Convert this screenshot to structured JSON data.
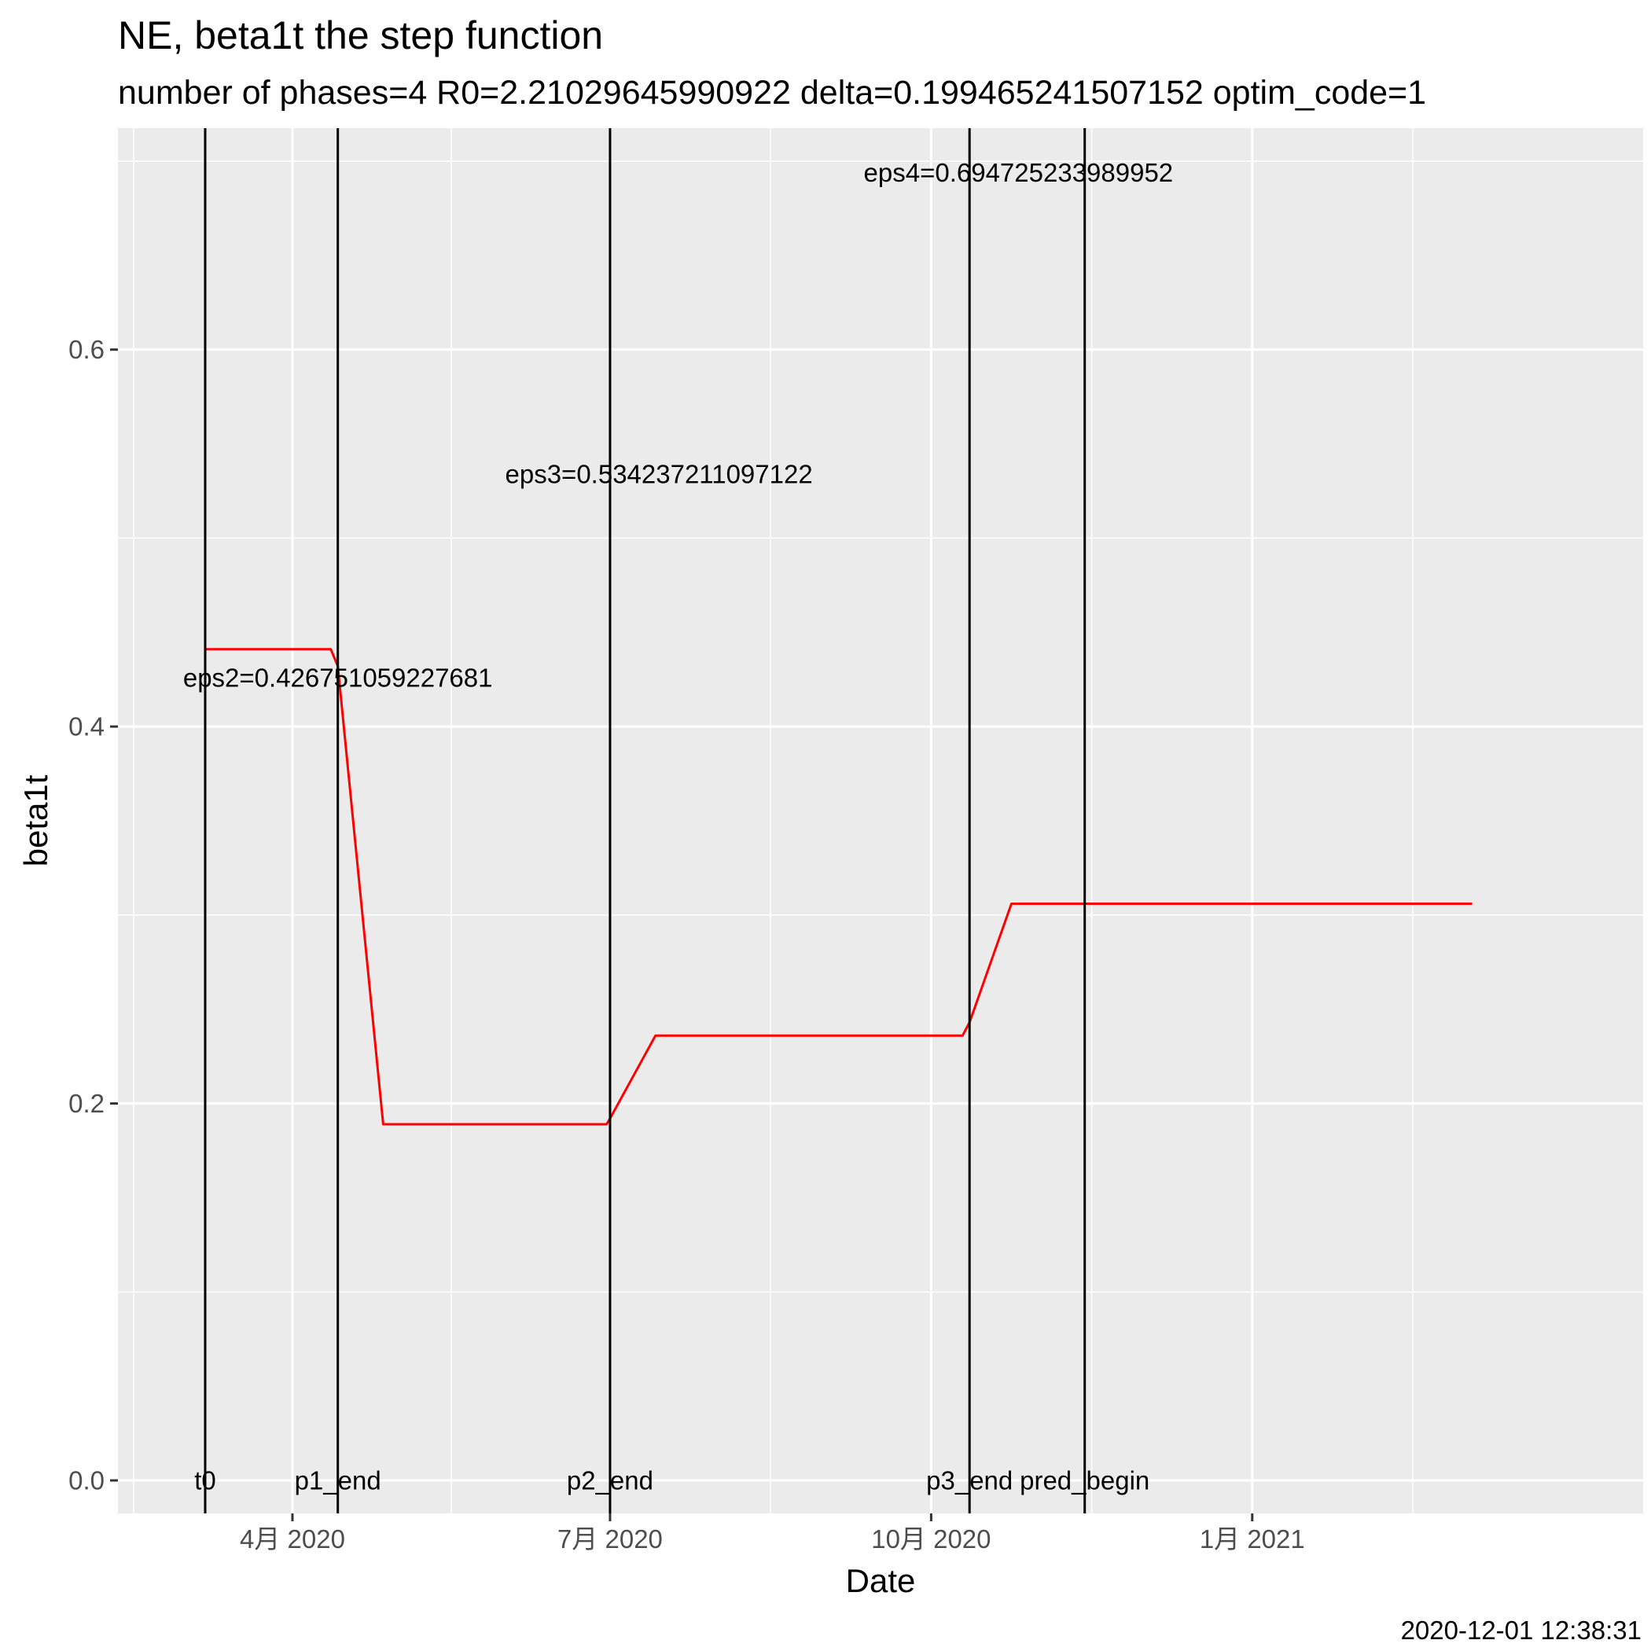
{
  "chart_data": {
    "type": "line",
    "title": "NE, beta1t the step function",
    "subtitle": "number of phases=4   R0=2.21029645990922   delta=0.199465241507152   optim_code=1",
    "xlabel": "Date",
    "ylabel": "beta1t",
    "caption": "2020-12-01 12:38:31",
    "x_axis": {
      "scale": "date",
      "range": [
        "2020-02-11",
        "2021-04-23"
      ],
      "ticks": [
        {
          "date": "2020-04-01",
          "label": "4月 2020"
        },
        {
          "date": "2020-07-01",
          "label": "7月 2020"
        },
        {
          "date": "2020-10-01",
          "label": "10月 2020"
        },
        {
          "date": "2021-01-01",
          "label": "1月 2021"
        }
      ]
    },
    "y_axis": {
      "range": [
        -0.0175,
        0.7175
      ],
      "ticks": [
        0.0,
        0.2,
        0.4,
        0.6
      ],
      "tick_labels": [
        "0.0",
        "0.2",
        "0.4",
        "0.6"
      ]
    },
    "grid": true,
    "background": "#ebebeb",
    "series": [
      {
        "color": "#ff0000",
        "points": [
          {
            "x": "2020-03-07",
            "y": 0.441
          },
          {
            "x": "2020-04-12",
            "y": 0.441
          },
          {
            "x": "2020-04-14",
            "y": 0.432
          },
          {
            "x": "2020-04-27",
            "y": 0.189
          },
          {
            "x": "2020-06-30",
            "y": 0.189
          },
          {
            "x": "2020-07-01",
            "y": 0.192
          },
          {
            "x": "2020-07-14",
            "y": 0.236
          },
          {
            "x": "2020-10-10",
            "y": 0.236
          },
          {
            "x": "2020-10-12",
            "y": 0.243
          },
          {
            "x": "2020-10-24",
            "y": 0.306
          },
          {
            "x": "2021-03-05",
            "y": 0.306
          }
        ]
      }
    ],
    "vlines": [
      {
        "x": "2020-03-07",
        "label": "t0",
        "label_y": 0.0
      },
      {
        "x": "2020-04-14",
        "label": "p1_end",
        "label_y": 0.0
      },
      {
        "x": "2020-07-01",
        "label": "p2_end",
        "label_y": 0.0
      },
      {
        "x": "2020-10-12",
        "label": "p3_end",
        "label_y": 0.0
      },
      {
        "x": "2020-11-14",
        "label": "pred_begin",
        "label_y": 0.0
      }
    ],
    "annotations": [
      {
        "text": "eps2=0.426751059227681",
        "x": "2020-04-14",
        "y": 0.426
      },
      {
        "text": "eps3=0.534237211097122",
        "x": "2020-07-15",
        "y": 0.534
      },
      {
        "text": "eps4=0.694725233989952",
        "x": "2020-10-26",
        "y": 0.694
      }
    ],
    "line_color": "#000000"
  }
}
